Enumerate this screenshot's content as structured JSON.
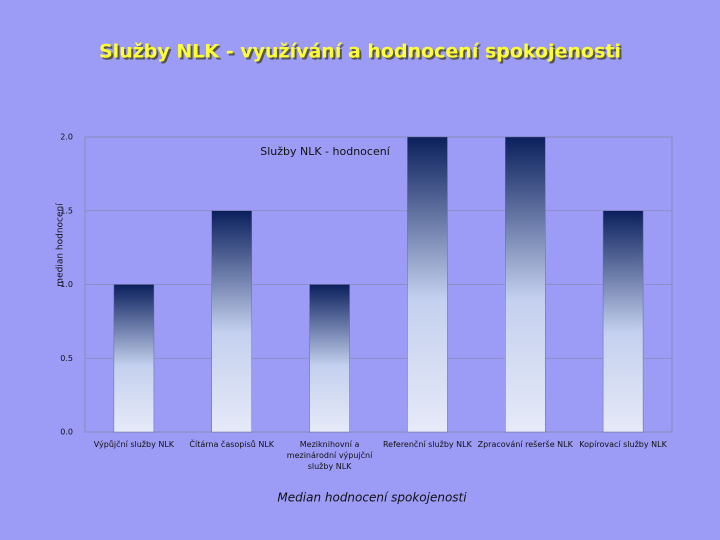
{
  "slide_title": "Služby NLK - využívání a hodnocení spokojenosti",
  "chart_data": {
    "type": "bar",
    "title": "Služby NLK - hodnocení",
    "x_label": "Median hodnocení spokojenosti",
    "y_label": "median hodnocení",
    "categories": [
      "Výpůjční služby NLK",
      "Čítárna časopisů NLK",
      "Meziknihovní a mezinárodní výpujční služby NLK",
      "Referenční služby NLK",
      "Zpracování rešerše NLK",
      "Kopírovací služby NLK"
    ],
    "values": [
      1,
      1.5,
      1,
      2,
      2,
      1.5
    ],
    "color": "#0a1f5c",
    "ylim": [
      0,
      2
    ],
    "yticks": [
      {
        "value": 0,
        "label": "0.0"
      },
      {
        "value": 0.5,
        "label": "0.5"
      },
      {
        "value": 1,
        "label": "1.0"
      },
      {
        "value": 1.5,
        "label": "1.5"
      },
      {
        "value": 2,
        "label": "2.0"
      }
    ],
    "grid": true
  }
}
